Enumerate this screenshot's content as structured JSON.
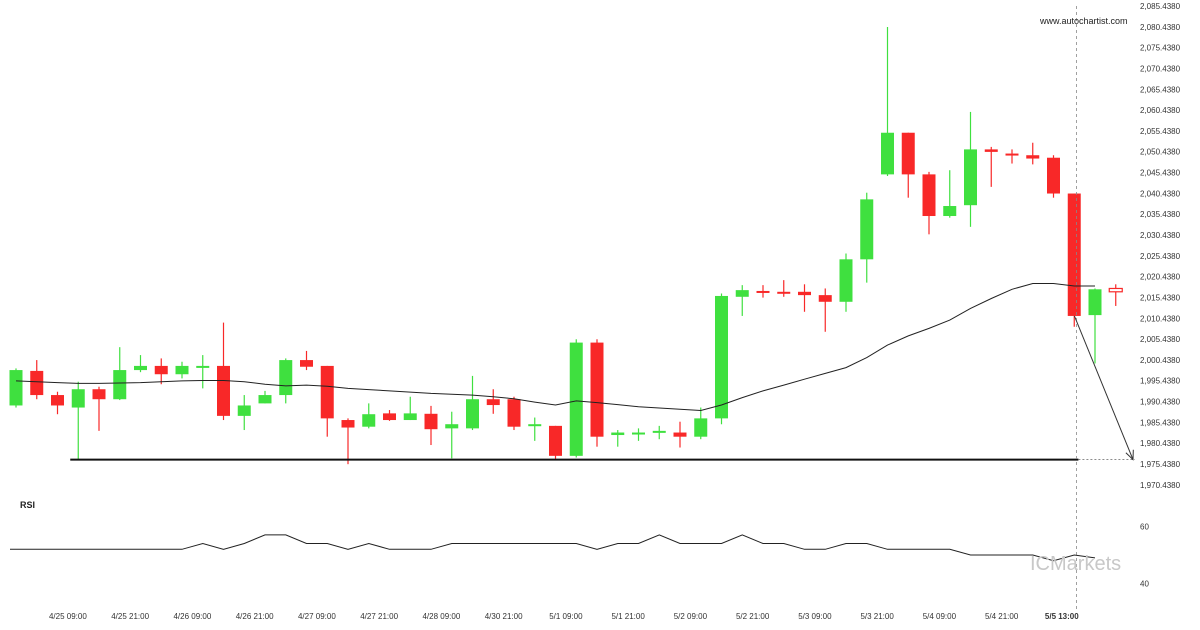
{
  "watermark": "www.autochartist.com",
  "brand": "ICMarkets",
  "colors": {
    "up": "#3fe03f",
    "down": "#f82828",
    "line": "#222222",
    "grid_text": "#333333"
  },
  "chart_data": {
    "type": "candlestick",
    "y_range": [
      1969.438,
      2085.438
    ],
    "y_ticks": [
      "2,085.4380",
      "2,080.4380",
      "2,075.4380",
      "2,070.4380",
      "2,065.4380",
      "2,060.4380",
      "2,055.4380",
      "2,050.4380",
      "2,045.4380",
      "2,040.4380",
      "2,035.4380",
      "2,030.4380",
      "2,025.4380",
      "2,020.4380",
      "2,015.4380",
      "2,010.4380",
      "2,005.4380",
      "2,000.4380",
      "1,995.4380",
      "1,990.4380",
      "1,985.4380",
      "1,980.4380",
      "1,975.4380",
      "1,970.4380"
    ],
    "x_labels": [
      {
        "label": "4/25 09:00",
        "index": 2.5
      },
      {
        "label": "4/25 21:00",
        "index": 5.5
      },
      {
        "label": "4/26 09:00",
        "index": 8.5
      },
      {
        "label": "4/26 21:00",
        "index": 11.5
      },
      {
        "label": "4/27 09:00",
        "index": 14.5
      },
      {
        "label": "4/27 21:00",
        "index": 17.5
      },
      {
        "label": "4/28 09:00",
        "index": 20.5
      },
      {
        "label": "4/30 21:00",
        "index": 23.5
      },
      {
        "label": "5/1 09:00",
        "index": 26.5
      },
      {
        "label": "5/1 21:00",
        "index": 29.5
      },
      {
        "label": "5/2 09:00",
        "index": 32.5
      },
      {
        "label": "5/2 21:00",
        "index": 35.5
      },
      {
        "label": "5/3 09:00",
        "index": 38.5
      },
      {
        "label": "5/3 21:00",
        "index": 41.5
      },
      {
        "label": "5/4 09:00",
        "index": 44.5
      },
      {
        "label": "5/4 21:00",
        "index": 47.5
      },
      {
        "label": "5/5 13:00",
        "index": 50.4,
        "bold": true
      }
    ],
    "candles": [
      {
        "o": 1989.5,
        "h": 1998.4,
        "l": 1989.0,
        "c": 1998.0
      },
      {
        "o": 1997.8,
        "h": 2000.4,
        "l": 1991.0,
        "c": 1992.0
      },
      {
        "o": 1992.0,
        "h": 1992.8,
        "l": 1987.4,
        "c": 1989.5
      },
      {
        "o": 1989.0,
        "h": 1995.2,
        "l": 1976.4,
        "c": 1993.4
      },
      {
        "o": 1993.4,
        "h": 1994.0,
        "l": 1983.4,
        "c": 1991.0
      },
      {
        "o": 1991.0,
        "h": 2003.5,
        "l": 1990.8,
        "c": 1998.0
      },
      {
        "o": 1998.0,
        "h": 2001.6,
        "l": 1997.5,
        "c": 1999.0
      },
      {
        "o": 1999.0,
        "h": 2000.8,
        "l": 1994.6,
        "c": 1997.0
      },
      {
        "o": 1997.0,
        "h": 2000.0,
        "l": 1996.0,
        "c": 1999.0
      },
      {
        "o": 1998.6,
        "h": 2001.6,
        "l": 1993.6,
        "c": 1999.0
      },
      {
        "o": 1999.0,
        "h": 2009.4,
        "l": 1986.0,
        "c": 1987.0
      },
      {
        "o": 1987.0,
        "h": 1992.0,
        "l": 1983.6,
        "c": 1989.5
      },
      {
        "o": 1990.0,
        "h": 1993.0,
        "l": 1990.0,
        "c": 1992.0
      },
      {
        "o": 1992.0,
        "h": 2000.8,
        "l": 1990.0,
        "c": 2000.4
      },
      {
        "o": 2000.4,
        "h": 2002.6,
        "l": 1998.0,
        "c": 1998.8
      },
      {
        "o": 1999.0,
        "h": 1999.0,
        "l": 1982.0,
        "c": 1986.4
      },
      {
        "o": 1986.0,
        "h": 1986.4,
        "l": 1975.4,
        "c": 1984.2
      },
      {
        "o": 1984.4,
        "h": 1990.0,
        "l": 1984.0,
        "c": 1987.4
      },
      {
        "o": 1987.6,
        "h": 1988.4,
        "l": 1985.8,
        "c": 1986.0
      },
      {
        "o": 1986.0,
        "h": 1991.6,
        "l": 1986.0,
        "c": 1987.6
      },
      {
        "o": 1987.5,
        "h": 1989.4,
        "l": 1980.0,
        "c": 1983.8
      },
      {
        "o": 1984.0,
        "h": 1988.0,
        "l": 1976.8,
        "c": 1985.0
      },
      {
        "o": 1984.0,
        "h": 1996.6,
        "l": 1983.6,
        "c": 1991.0
      },
      {
        "o": 1991.0,
        "h": 1993.4,
        "l": 1987.5,
        "c": 1989.6
      },
      {
        "o": 1991.0,
        "h": 1991.6,
        "l": 1983.6,
        "c": 1984.4
      },
      {
        "o": 1985.0,
        "h": 1986.6,
        "l": 1981.0,
        "c": 1985.0
      },
      {
        "o": 1984.6,
        "h": 1984.6,
        "l": 1976.6,
        "c": 1977.4
      },
      {
        "o": 1977.4,
        "h": 2005.4,
        "l": 1977.0,
        "c": 2004.6
      },
      {
        "o": 2004.6,
        "h": 2005.4,
        "l": 1979.6,
        "c": 1982.0
      },
      {
        "o": 1982.4,
        "h": 1983.6,
        "l": 1979.6,
        "c": 1983.0
      },
      {
        "o": 1982.6,
        "h": 1984.0,
        "l": 1981.0,
        "c": 1983.0
      },
      {
        "o": 1983.0,
        "h": 1984.6,
        "l": 1981.4,
        "c": 1983.4
      },
      {
        "o": 1983.0,
        "h": 1985.6,
        "l": 1979.4,
        "c": 1982.0
      },
      {
        "o": 1982.0,
        "h": 1989.0,
        "l": 1981.4,
        "c": 1986.4
      },
      {
        "o": 1986.4,
        "h": 2016.4,
        "l": 1985.0,
        "c": 2015.8
      },
      {
        "o": 2015.6,
        "h": 2018.4,
        "l": 2011.0,
        "c": 2017.2
      },
      {
        "o": 2017.0,
        "h": 2018.4,
        "l": 2015.4,
        "c": 2016.8
      },
      {
        "o": 2016.8,
        "h": 2019.6,
        "l": 2015.6,
        "c": 2016.4
      },
      {
        "o": 2016.8,
        "h": 2018.6,
        "l": 2012.0,
        "c": 2016.0
      },
      {
        "o": 2016.0,
        "h": 2017.6,
        "l": 2007.2,
        "c": 2014.4
      },
      {
        "o": 2014.4,
        "h": 2026.0,
        "l": 2012.0,
        "c": 2024.6
      },
      {
        "o": 2024.6,
        "h": 2040.6,
        "l": 2019.0,
        "c": 2039.0
      },
      {
        "o": 2045.0,
        "h": 2080.4,
        "l": 2044.6,
        "c": 2055.0
      },
      {
        "o": 2055.0,
        "h": 2055.0,
        "l": 2039.4,
        "c": 2045.0
      },
      {
        "o": 2045.0,
        "h": 2045.6,
        "l": 2030.6,
        "c": 2035.0
      },
      {
        "o": 2035.0,
        "h": 2046.0,
        "l": 2034.6,
        "c": 2037.4
      },
      {
        "o": 2037.6,
        "h": 2060.0,
        "l": 2032.4,
        "c": 2051.0
      },
      {
        "o": 2051.0,
        "h": 2051.6,
        "l": 2042.0,
        "c": 2050.4
      },
      {
        "o": 2050.0,
        "h": 2051.0,
        "l": 2047.6,
        "c": 2049.6
      },
      {
        "o": 2049.6,
        "h": 2052.6,
        "l": 2047.4,
        "c": 2048.8
      },
      {
        "o": 2049.0,
        "h": 2049.6,
        "l": 2039.4,
        "c": 2040.4
      },
      {
        "o": 2040.4,
        "h": 2040.4,
        "l": 2008.4,
        "c": 2011.0
      },
      {
        "o": 2011.2,
        "h": 2017.6,
        "l": 1999.6,
        "c": 2017.4
      },
      {
        "o": 2017.6,
        "h": 2018.6,
        "l": 2013.4,
        "c": 2016.8,
        "hollow": true
      }
    ],
    "moving_average": [
      1995.4,
      1995.2,
      1995.0,
      1994.8,
      1994.8,
      1994.9,
      1995.0,
      1995.2,
      1995.4,
      1995.5,
      1995.5,
      1995.2,
      1994.6,
      1994.2,
      1994.4,
      1994.1,
      1993.6,
      1993.3,
      1993.0,
      1992.7,
      1992.4,
      1992.2,
      1992.0,
      1991.6,
      1991.1,
      1990.3,
      1989.6,
      1990.6,
      1990.2,
      1989.7,
      1989.2,
      1988.9,
      1988.6,
      1988.3,
      1989.6,
      1991.4,
      1993.0,
      1994.4,
      1995.8,
      1997.2,
      1998.6,
      2001.0,
      2004.0,
      2006.2,
      2008.0,
      2010.0,
      2012.8,
      2015.2,
      2017.4,
      2018.8,
      2018.8,
      2018.2,
      2018.2
    ],
    "support_level": 1976.5,
    "support_from_index": 3,
    "support_to_index": 51.2,
    "projection": {
      "from_index": 51.2,
      "from_value": 2011.0,
      "to_value": 1976.5
    },
    "current_index": 51.2,
    "rsi": {
      "title": "RSI",
      "y_range": [
        35,
        65
      ],
      "y_ticks": [
        "60",
        "40"
      ],
      "values": [
        52,
        52,
        52,
        52,
        52,
        52,
        52,
        52,
        52,
        54,
        52,
        54,
        57,
        57,
        54,
        54,
        52,
        54,
        52,
        52,
        52,
        54,
        54,
        54,
        54,
        54,
        54,
        54,
        52,
        54,
        54,
        57,
        54,
        54,
        54,
        57,
        54,
        54,
        52,
        52,
        54,
        54,
        52,
        52,
        52,
        52,
        50,
        50,
        50,
        50,
        48,
        50,
        49
      ]
    }
  }
}
